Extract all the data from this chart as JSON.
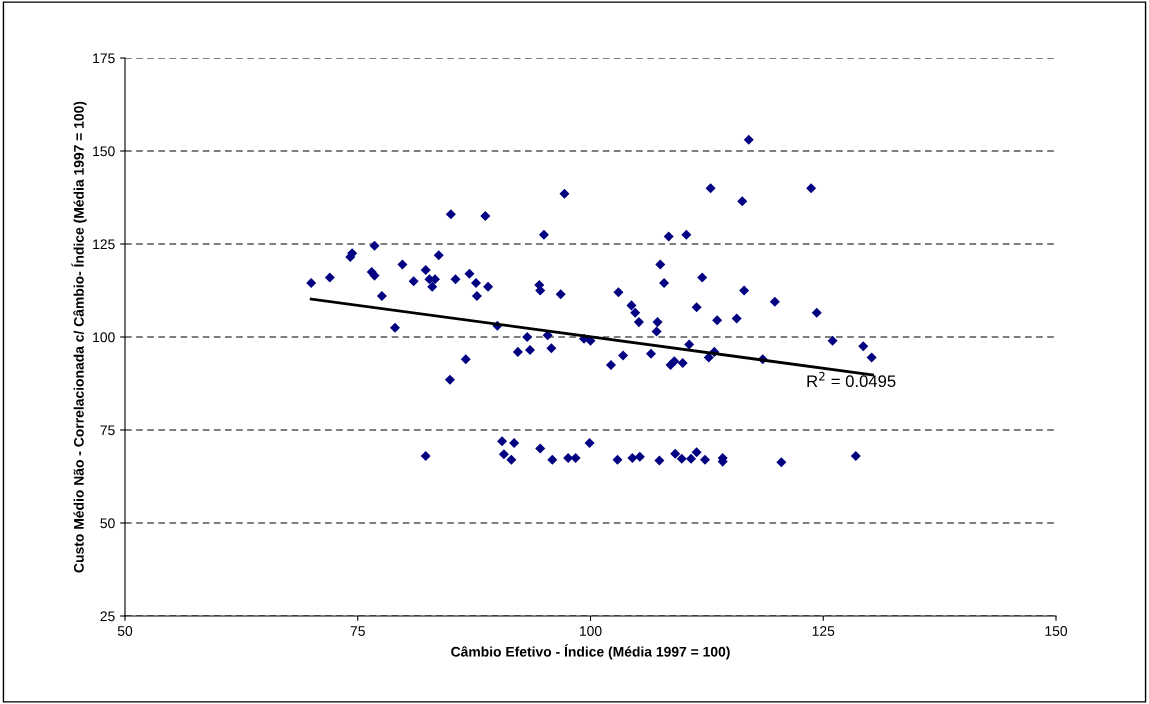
{
  "chart_data": {
    "type": "scatter",
    "xlabel": "Câmbio Efetivo - Índice (Média 1997 = 100)",
    "ylabel": "Custo Médio Não - Correlacionada c/ Câmbio- Índice (Média 1997 = 100)",
    "xlim": [
      50,
      150
    ],
    "xticks": [
      50,
      75,
      100,
      125,
      150
    ],
    "ylim": [
      25,
      175
    ],
    "yticks": [
      25,
      50,
      75,
      100,
      125,
      150,
      175
    ],
    "grid": "y",
    "legend": false,
    "marker": "diamond",
    "series": [
      {
        "color": "#000080",
        "x": [
          70,
          72,
          74.2,
          74.4,
          76.5,
          76.8,
          76.8,
          77.6,
          79,
          79.8,
          81,
          82.3,
          82.7,
          83,
          83.3,
          83.7,
          85,
          84.9,
          85.5,
          86.6,
          87,
          87.7,
          87.8,
          88.7,
          89,
          90,
          92.2,
          93.2,
          93.5,
          94.5,
          94.6,
          95,
          95.4,
          95.8,
          96.8,
          97.2,
          99.3,
          100,
          102.2,
          103,
          103.5,
          104.4,
          104.8,
          105.2,
          106.5,
          107.1,
          107.2,
          107.5,
          107.9,
          108.4,
          108.6,
          109,
          109.9,
          110.3,
          110.6,
          111.4,
          112,
          112.7,
          112.9,
          113.3,
          113.6,
          115.7,
          116.3,
          116.5,
          117,
          118.5,
          119.8,
          123.7,
          124.3,
          126,
          129.3,
          130.2,
          82.3,
          90.5,
          90.7,
          91.5,
          91.8,
          94.6,
          95.9,
          97.6,
          98.4,
          99.9,
          102.9,
          104.5,
          105.3,
          107.4,
          109.1,
          109.8,
          110.8,
          111.4,
          112.3,
          114.2,
          114.2,
          120.5,
          128.5
        ],
        "values": [
          114.5,
          116,
          121.5,
          122.5,
          117.5,
          116.5,
          124.5,
          111,
          102.5,
          119.5,
          115,
          118,
          115.5,
          113.5,
          115.5,
          122,
          133,
          88.5,
          115.5,
          94,
          117,
          114.5,
          111,
          132.5,
          113.5,
          103,
          96,
          100,
          96.5,
          114,
          112.5,
          127.5,
          100.5,
          97,
          111.5,
          138.5,
          99.5,
          99,
          92.5,
          112,
          95,
          108.5,
          106.5,
          104,
          95.5,
          101.5,
          104,
          119.5,
          114.5,
          127,
          92.5,
          93.5,
          93,
          127.5,
          98,
          108,
          116,
          94.5,
          140,
          96,
          104.5,
          105,
          136.5,
          112.5,
          153,
          94,
          109.5,
          140,
          106.5,
          99,
          97.5,
          94.5,
          68,
          72,
          68.5,
          67,
          71.5,
          70,
          67,
          67.5,
          67.5,
          71.5,
          67,
          67.5,
          67.8,
          66.8,
          68.6,
          67.3,
          67.3,
          69,
          67,
          67.5,
          66.5,
          66.3,
          68
        ]
      },
      {
        "type": "line",
        "color": "#000000",
        "marker": "none",
        "line_style": "solid",
        "x": [
          70,
          130.3
        ],
        "values": [
          110.2,
          89.8
        ]
      }
    ],
    "annotations": [
      {
        "text": "R$^{2}$ = 0.0495",
        "x": 128,
        "y": 89.8
      }
    ]
  }
}
